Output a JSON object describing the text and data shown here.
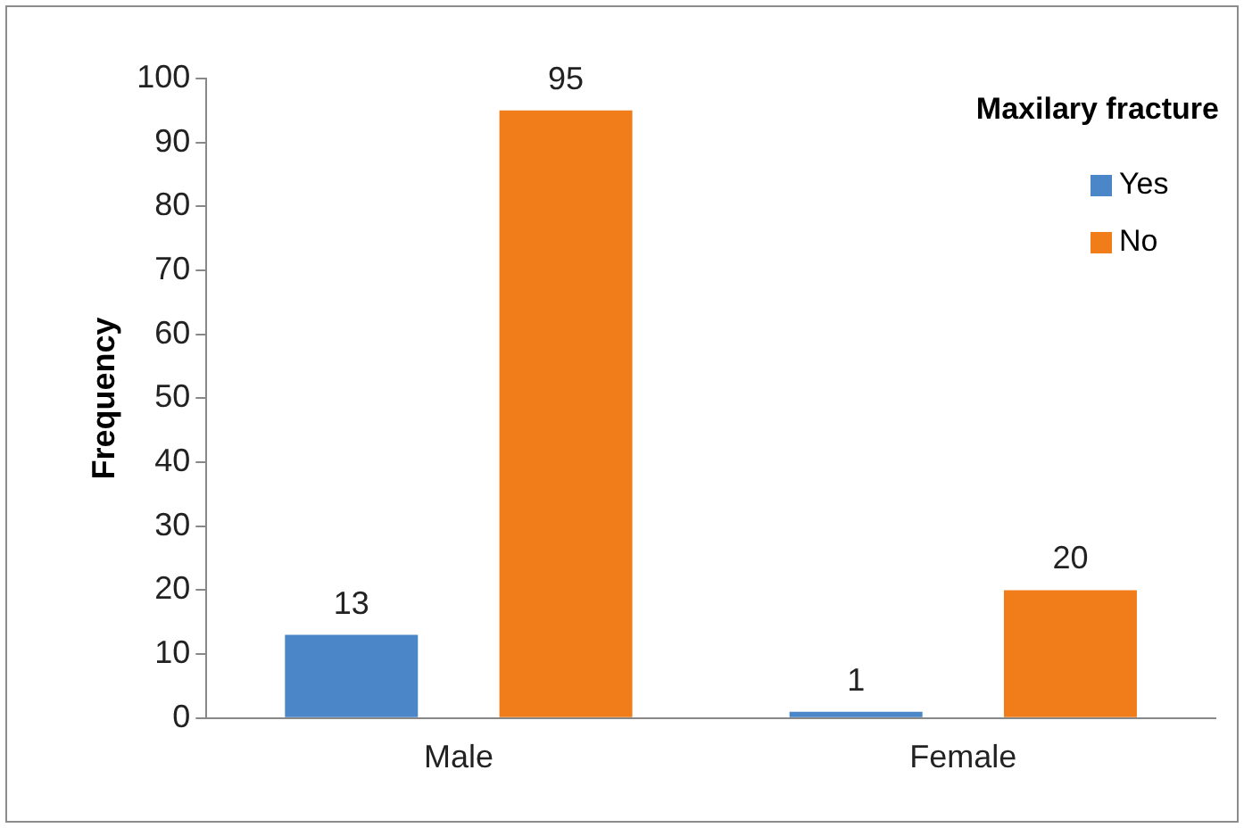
{
  "chart_data": {
    "type": "bar",
    "ylabel": "Frequency",
    "legend_title": "Maxilary fracture",
    "categories": [
      "Male",
      "Female"
    ],
    "series": [
      {
        "name": "Yes",
        "color": "#4a86c8",
        "values": [
          13,
          1
        ]
      },
      {
        "name": "No",
        "color": "#f07d1a",
        "values": [
          95,
          20
        ]
      }
    ],
    "ylim": [
      0,
      100
    ],
    "yticks": [
      0,
      10,
      20,
      30,
      40,
      50,
      60,
      70,
      80,
      90,
      100
    ],
    "grid": false,
    "legend": "top right",
    "data_labels": true
  }
}
